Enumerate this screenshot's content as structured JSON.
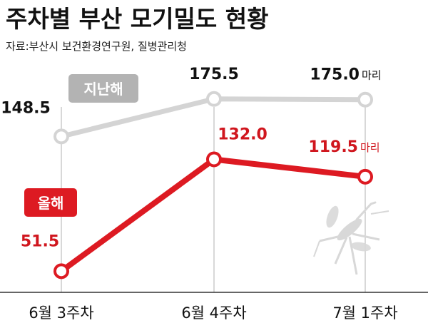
{
  "header": {
    "title": "주차별 부산 모기밀도 현황",
    "subtitle": "자료:부산시 보건환경연구원, 질병관리청"
  },
  "chart_data": {
    "type": "line",
    "title": "주차별 부산 모기밀도 현황",
    "subtitle": "자료:부산시 보건환경연구원, 질병관리청",
    "categories": [
      "6월 3주차",
      "6월 4주차",
      "7월 1주차"
    ],
    "unit": "마리",
    "series": [
      {
        "name": "지난해",
        "values": [
          148.5,
          175.5,
          175.0
        ],
        "labels": [
          "148.5",
          "175.5",
          "175.0"
        ],
        "color": "#d4d4d4",
        "label_color": "#111111",
        "badge_color": "#b3b3b3"
      },
      {
        "name": "올해",
        "values": [
          51.5,
          132.0,
          119.5
        ],
        "labels": [
          "51.5",
          "132.0",
          "119.5"
        ],
        "color": "#dd1a22",
        "label_color": "#d0161e",
        "badge_color": "#dd1a22"
      }
    ],
    "ylim": [
      45,
      180
    ],
    "grid": false,
    "legend": "inline labels"
  }
}
